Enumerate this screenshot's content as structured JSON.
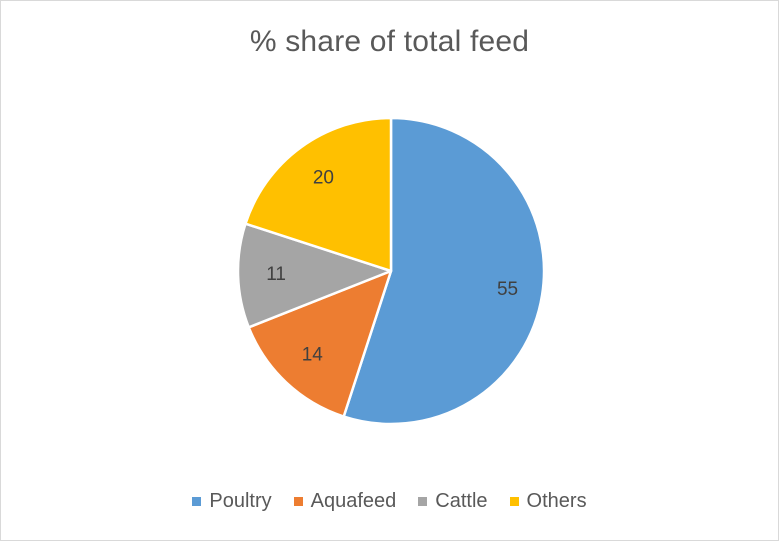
{
  "chart_data": {
    "type": "pie",
    "title": "% share of total feed",
    "categories": [
      "Poultry",
      "Aquafeed",
      "Cattle",
      "Others"
    ],
    "values": [
      55,
      14,
      11,
      20
    ],
    "colors": [
      "#5b9bd5",
      "#ed7d31",
      "#a5a5a5",
      "#ffc000"
    ],
    "data_labels": [
      "55",
      "14",
      "11",
      "20"
    ],
    "legend_position": "bottom",
    "start_angle_deg": 0,
    "direction": "clockwise"
  }
}
